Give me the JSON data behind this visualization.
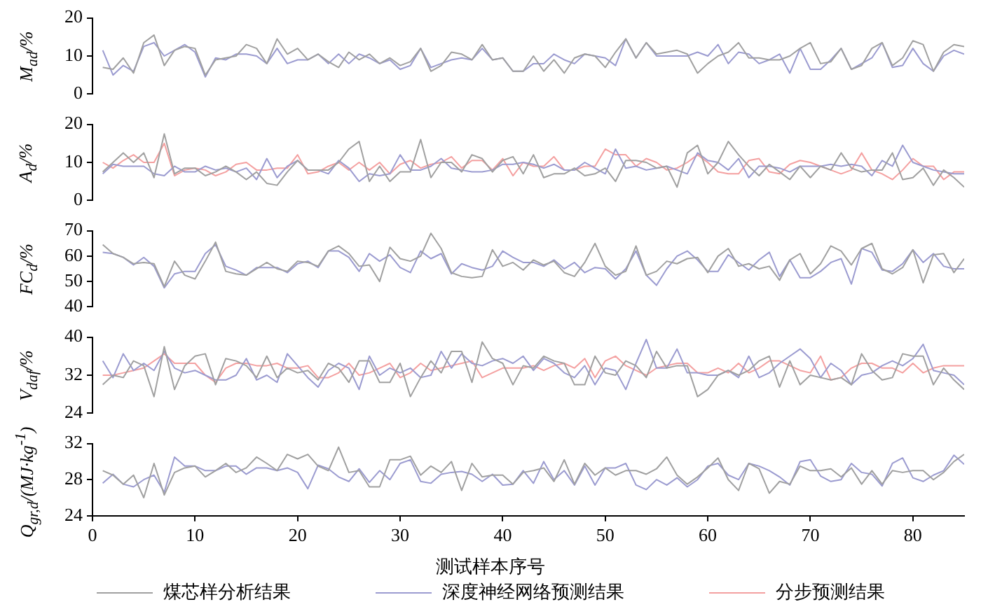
{
  "chart_data": [
    {
      "type": "line",
      "ylabel": "M$_{ad}$/%",
      "ylim": [
        0,
        20
      ],
      "yticks": [
        0,
        10,
        20
      ],
      "tick_labels": "y",
      "grid": false,
      "x": [
        1,
        2,
        3,
        4,
        5,
        6,
        7,
        8,
        9,
        10,
        11,
        12,
        13,
        14,
        15,
        16,
        17,
        18,
        19,
        20,
        21,
        22,
        23,
        24,
        25,
        26,
        27,
        28,
        29,
        30,
        31,
        32,
        33,
        34,
        35,
        36,
        37,
        38,
        39,
        40,
        41,
        42,
        43,
        44,
        45,
        46,
        47,
        48,
        49,
        50,
        51,
        52,
        53,
        54,
        55,
        56,
        57,
        58,
        59,
        60,
        61,
        62,
        63,
        64,
        65,
        66,
        67,
        68,
        69,
        70,
        71,
        72,
        73,
        74,
        75,
        76,
        77,
        78,
        79,
        80,
        81,
        82,
        83,
        84,
        85
      ],
      "series": [
        {
          "color": "#a0a0a0",
          "values": [
            7,
            6.5,
            9.5,
            5.5,
            13.5,
            15.5,
            7.5,
            11.5,
            12.5,
            12,
            5,
            9,
            9.5,
            10,
            13,
            12,
            8,
            14.5,
            10.5,
            12,
            9,
            10.5,
            8.5,
            7,
            11,
            9,
            10.5,
            8,
            9.5,
            7.5,
            8.5,
            12,
            6,
            7.5,
            11,
            10.5,
            9,
            13,
            9,
            9.5,
            6,
            6,
            10,
            6,
            9,
            5.5,
            9.5,
            10.5,
            10,
            7,
            11,
            14.5,
            9.5,
            13.5,
            10.5,
            11,
            11.5,
            10.5,
            5.5,
            8,
            10,
            11,
            13.5,
            9.5,
            9.5,
            9,
            9,
            10,
            12,
            13.5,
            8,
            8.5,
            12,
            6.5,
            7.5,
            12,
            13.5,
            7.5,
            9.5,
            14,
            13,
            6,
            11,
            13,
            12.5
          ]
        },
        {
          "color": "#9b9bd0",
          "values": [
            11.5,
            5,
            7.5,
            6,
            12.5,
            13.5,
            10,
            11.5,
            13,
            11,
            4.5,
            9.5,
            9,
            10.5,
            10.5,
            10,
            8,
            12,
            8,
            9,
            9,
            10.5,
            8,
            10.5,
            8,
            10.5,
            9.5,
            8,
            9,
            6.5,
            7.5,
            12,
            7,
            8,
            9,
            9.5,
            9,
            12,
            9,
            9.5,
            6,
            6,
            8,
            8,
            10.5,
            9,
            8,
            10.5,
            10,
            9.5,
            7.5,
            14.5,
            9.5,
            13.5,
            10,
            10,
            10,
            10,
            11,
            10,
            13,
            8,
            11,
            10.5,
            8,
            9,
            10.5,
            5.5,
            12,
            6.5,
            6.5,
            9,
            12,
            6.5,
            8,
            9.5,
            13.5,
            7,
            7.5,
            12,
            8,
            6,
            10,
            11.5,
            10.5
          ]
        }
      ]
    },
    {
      "type": "line",
      "ylabel": "A$_{d}$/%",
      "ylim": [
        0,
        20
      ],
      "yticks": [
        0,
        10,
        20
      ],
      "tick_labels": "y",
      "grid": false,
      "legend": "bottom",
      "x": [
        1,
        2,
        3,
        4,
        5,
        6,
        7,
        8,
        9,
        10,
        11,
        12,
        13,
        14,
        15,
        16,
        17,
        18,
        19,
        20,
        21,
        22,
        23,
        24,
        25,
        26,
        27,
        28,
        29,
        30,
        31,
        32,
        33,
        34,
        35,
        36,
        37,
        38,
        39,
        40,
        41,
        42,
        43,
        44,
        45,
        46,
        47,
        48,
        49,
        50,
        51,
        52,
        53,
        54,
        55,
        56,
        57,
        58,
        59,
        60,
        61,
        62,
        63,
        64,
        65,
        66,
        67,
        68,
        69,
        70,
        71,
        72,
        73,
        74,
        75,
        76,
        77,
        78,
        79,
        80,
        81,
        82,
        83,
        84,
        85
      ],
      "series": [
        {
          "name": "煤芯样分析结果",
          "color": "#a0a0a0",
          "values": [
            7.5,
            10,
            12.5,
            10,
            12.5,
            6,
            17.5,
            7,
            8.5,
            8.5,
            6.5,
            7.5,
            9,
            7.5,
            5.5,
            7.5,
            4.5,
            4,
            7.5,
            10.5,
            8,
            8,
            8,
            10,
            13.5,
            15.5,
            5,
            9,
            5,
            7.5,
            7.5,
            16,
            6,
            10,
            10,
            7.5,
            12,
            11,
            7.5,
            10.5,
            11.5,
            7,
            12,
            6,
            7,
            7,
            8.5,
            6.5,
            7,
            8.5,
            5,
            10.5,
            10.5,
            10,
            8.5,
            9,
            3.5,
            12.5,
            14.5,
            7,
            10,
            15.5,
            12,
            9,
            6.5,
            9.5,
            7.5,
            5.5,
            9,
            6,
            9,
            8,
            12.5,
            8.5,
            7.5,
            8,
            8,
            12.5,
            5.5,
            6,
            8.5,
            4,
            8,
            6,
            3.5
          ]
        },
        {
          "name": "深度神经网络预测结果",
          "color": "#9b9bd0",
          "values": [
            7,
            9.5,
            9,
            9,
            9,
            7,
            6.5,
            9,
            7.5,
            7.5,
            9,
            8,
            8.5,
            7.5,
            8.5,
            5.5,
            11,
            6,
            9,
            10.5,
            8,
            8,
            7,
            10.5,
            8.5,
            5,
            7,
            6.5,
            7,
            12,
            8,
            8,
            9,
            11,
            8.5,
            8,
            7.5,
            7.5,
            8,
            9.5,
            9.5,
            10,
            9.5,
            8.5,
            9.5,
            8,
            8,
            10,
            8.5,
            7,
            13.5,
            8.5,
            9,
            8,
            8.5,
            9,
            8,
            7,
            12.5,
            10.5,
            10,
            8,
            11,
            6,
            9,
            9,
            8.5,
            7.5,
            9,
            9,
            9,
            9.5,
            9,
            9.5,
            9,
            6.5,
            10.5,
            9,
            14.5,
            10,
            9,
            8,
            7.5,
            7,
            7
          ]
        },
        {
          "name": "分步预测结果",
          "color": "#f4a0a0",
          "values": [
            10,
            8.5,
            10.5,
            12,
            10,
            10,
            15,
            6.5,
            8,
            8.5,
            8,
            6.5,
            7.5,
            9.5,
            10,
            8,
            8,
            8.5,
            8.5,
            12,
            7,
            7.5,
            9,
            10,
            8,
            10,
            8,
            10,
            7,
            9.5,
            10.5,
            8.5,
            9.5,
            10,
            11.5,
            8.5,
            10.5,
            10.5,
            8,
            11,
            6.5,
            10,
            9,
            9,
            11.5,
            8,
            8,
            9,
            9,
            13.5,
            12,
            12,
            9,
            11,
            10,
            8,
            8.5,
            10,
            12,
            10,
            7.5,
            7,
            7,
            10.5,
            11,
            7.5,
            7,
            9.5,
            10.5,
            10,
            9,
            8,
            7,
            8,
            12.5,
            8,
            7,
            5.5,
            8,
            11,
            9,
            9,
            5.5,
            7.5,
            7.5
          ]
        }
      ]
    },
    {
      "type": "line",
      "ylabel": "FC$_{d}$/%",
      "ylim": [
        40,
        70
      ],
      "yticks": [
        40,
        50,
        60,
        70
      ],
      "tick_labels": "y",
      "grid": false,
      "x": [
        1,
        2,
        3,
        4,
        5,
        6,
        7,
        8,
        9,
        10,
        11,
        12,
        13,
        14,
        15,
        16,
        17,
        18,
        19,
        20,
        21,
        22,
        23,
        24,
        25,
        26,
        27,
        28,
        29,
        30,
        31,
        32,
        33,
        34,
        35,
        36,
        37,
        38,
        39,
        40,
        41,
        42,
        43,
        44,
        45,
        46,
        47,
        48,
        49,
        50,
        51,
        52,
        53,
        54,
        55,
        56,
        57,
        58,
        59,
        60,
        61,
        62,
        63,
        64,
        65,
        66,
        67,
        68,
        69,
        70,
        71,
        72,
        73,
        74,
        75,
        76,
        77,
        78,
        79,
        80,
        81,
        82,
        83,
        84,
        85
      ],
      "series": [
        {
          "color": "#a0a0a0",
          "values": [
            64.5,
            61,
            59.5,
            57,
            57.5,
            57,
            48,
            58,
            52.5,
            51,
            58,
            65.5,
            54,
            53,
            52.5,
            55,
            57.5,
            55,
            54,
            58,
            57.5,
            56,
            62,
            64,
            61,
            56,
            56.5,
            50,
            63.5,
            59,
            58,
            60,
            69,
            63,
            53.5,
            52,
            51.5,
            52,
            62.5,
            56,
            57.5,
            54.5,
            58.5,
            56.5,
            58,
            53.5,
            52,
            57.5,
            65,
            56,
            52.5,
            54,
            64,
            52.5,
            54,
            58,
            57,
            59,
            59.5,
            53.5,
            60,
            63,
            56,
            57,
            55,
            56,
            50.5,
            58.5,
            61,
            53,
            57,
            64,
            62,
            56.5,
            63,
            65,
            55,
            53,
            55.5,
            62.5,
            49.5,
            60.5,
            61,
            53.5,
            59
          ]
        },
        {
          "color": "#9b9bd0",
          "values": [
            61.5,
            61,
            59.5,
            56.5,
            59.5,
            56,
            47.5,
            53,
            54,
            54,
            61,
            64.5,
            56,
            54.5,
            52.5,
            55.5,
            55.5,
            55.5,
            53.5,
            57,
            58,
            55.5,
            62,
            62,
            59.5,
            54,
            61,
            58,
            60.5,
            55.5,
            53.5,
            62,
            59,
            61,
            53,
            57,
            55.5,
            54.5,
            56,
            62,
            59.5,
            57.5,
            57.5,
            56,
            58.5,
            55,
            57.5,
            53.5,
            55.5,
            55,
            51,
            55,
            62,
            52.5,
            48.5,
            55,
            60,
            62,
            58.5,
            54,
            54,
            60.5,
            57.5,
            54.5,
            58.5,
            61.5,
            52,
            58.5,
            51.5,
            51.5,
            54,
            57.5,
            59,
            49,
            63,
            61.5,
            54.5,
            54,
            57,
            62.5,
            57.5,
            61,
            56,
            55,
            55
          ]
        }
      ]
    },
    {
      "type": "line",
      "ylabel": "V$_{daf}$/%",
      "ylim": [
        24,
        40
      ],
      "yticks": [
        24,
        32,
        40
      ],
      "tick_labels": "y",
      "grid": false,
      "x": [
        1,
        2,
        3,
        4,
        5,
        6,
        7,
        8,
        9,
        10,
        11,
        12,
        13,
        14,
        15,
        16,
        17,
        18,
        19,
        20,
        21,
        22,
        23,
        24,
        25,
        26,
        27,
        28,
        29,
        30,
        31,
        32,
        33,
        34,
        35,
        36,
        37,
        38,
        39,
        40,
        41,
        42,
        43,
        44,
        45,
        46,
        47,
        48,
        49,
        50,
        51,
        52,
        53,
        54,
        55,
        56,
        57,
        58,
        59,
        60,
        61,
        62,
        63,
        64,
        65,
        66,
        67,
        68,
        69,
        70,
        71,
        72,
        73,
        74,
        75,
        76,
        77,
        78,
        79,
        80,
        81,
        82,
        83,
        84,
        85
      ],
      "series": [
        {
          "color": "#a0a0a0",
          "values": [
            30,
            32,
            31.5,
            35,
            34,
            27.5,
            38,
            29,
            34,
            36,
            36.5,
            30,
            35.5,
            35,
            34,
            31.5,
            36,
            31.5,
            33.5,
            32.5,
            33,
            31,
            34.5,
            33.5,
            30.5,
            35,
            35,
            30.5,
            30.5,
            34.5,
            27.5,
            31.5,
            35,
            32.5,
            37,
            37,
            30.5,
            39,
            35.5,
            34.5,
            30,
            34,
            33.5,
            36,
            35,
            34.5,
            30,
            30,
            36,
            32.5,
            32,
            35,
            34,
            31.5,
            37,
            33.5,
            34,
            34,
            27.5,
            29,
            32,
            33,
            32,
            33,
            35,
            36,
            29.5,
            35,
            30,
            32,
            31.5,
            31,
            31.5,
            30,
            36.5,
            33,
            31,
            31.5,
            36.5,
            36,
            36,
            30,
            33.5,
            31,
            29
          ]
        },
        {
          "color": "#9b9bd0",
          "values": [
            35,
            31.5,
            36.5,
            33,
            34.5,
            33,
            37,
            33.5,
            32.5,
            33,
            32,
            31,
            31,
            32,
            35.5,
            31,
            32,
            30.5,
            36.5,
            34,
            31.5,
            29.5,
            33,
            34.5,
            33.5,
            29,
            36,
            32,
            33.5,
            32.5,
            33.5,
            31.5,
            32,
            37,
            33.5,
            36.5,
            34.5,
            34,
            35,
            35.5,
            34.5,
            36,
            33,
            35.5,
            34.5,
            32.5,
            31.5,
            34,
            30,
            33.5,
            33,
            29,
            34.5,
            39.5,
            33.5,
            33.5,
            37.5,
            32.5,
            32.5,
            32,
            32,
            33,
            31.5,
            36,
            31.5,
            32.5,
            34.5,
            36,
            37.5,
            35.5,
            31.5,
            34.5,
            33,
            30,
            32,
            32.5,
            34,
            35,
            34,
            35.5,
            38.5,
            33,
            32.5,
            32,
            30
          ]
        },
        {
          "color": "#f4a0a0",
          "values": [
            32,
            32,
            32.5,
            33,
            33.5,
            35,
            36.5,
            34.5,
            34.5,
            34.5,
            32,
            30.5,
            33.5,
            34.5,
            34.5,
            34,
            34,
            34.5,
            33.5,
            33.5,
            34,
            31.5,
            31.5,
            32.5,
            34.5,
            32,
            32.5,
            33.5,
            34.5,
            31.5,
            32.5,
            34.5,
            33,
            33.5,
            34,
            34.5,
            35,
            31.5,
            32.5,
            33.5,
            33.5,
            33.5,
            34,
            33,
            34,
            34.5,
            33.5,
            35.5,
            31.5,
            35,
            36,
            34,
            33,
            32,
            33.5,
            34,
            34.5,
            34.5,
            32.5,
            32.5,
            33.5,
            32.5,
            34.5,
            32.5,
            33.5,
            35,
            35,
            34,
            33,
            32.5,
            36,
            31,
            31.5,
            33.5,
            34.5,
            34.5,
            33.5,
            33.5,
            32.5,
            34.5,
            32.5,
            33.5,
            34,
            34,
            34
          ]
        }
      ]
    },
    {
      "type": "line",
      "ylabel": "Q$_{gr,d}$/(MJ·kg$^{-1}$)",
      "xlabel": "测试样本序号",
      "xlim": [
        0,
        85
      ],
      "xticks": [
        0,
        10,
        20,
        30,
        40,
        50,
        60,
        70,
        80
      ],
      "ylim": [
        24,
        32
      ],
      "yticks": [
        24,
        28,
        32
      ],
      "grid": false,
      "x": [
        1,
        2,
        3,
        4,
        5,
        6,
        7,
        8,
        9,
        10,
        11,
        12,
        13,
        14,
        15,
        16,
        17,
        18,
        19,
        20,
        21,
        22,
        23,
        24,
        25,
        26,
        27,
        28,
        29,
        30,
        31,
        32,
        33,
        34,
        35,
        36,
        37,
        38,
        39,
        40,
        41,
        42,
        43,
        44,
        45,
        46,
        47,
        48,
        49,
        50,
        51,
        52,
        53,
        54,
        55,
        56,
        57,
        58,
        59,
        60,
        61,
        62,
        63,
        64,
        65,
        66,
        67,
        68,
        69,
        70,
        71,
        72,
        73,
        74,
        75,
        76,
        77,
        78,
        79,
        80,
        81,
        82,
        83,
        84,
        85
      ],
      "series": [
        {
          "color": "#a0a0a0",
          "values": [
            29,
            28.5,
            27.5,
            28.5,
            26,
            29.8,
            26.3,
            28.8,
            29.3,
            29.5,
            28.3,
            29,
            29.8,
            28.8,
            29.3,
            30.5,
            29.8,
            29,
            30.8,
            30.3,
            30.8,
            29.5,
            29,
            31.6,
            28.8,
            29,
            27.2,
            27.2,
            30.2,
            30.2,
            30.6,
            28.5,
            29.5,
            28.8,
            30,
            26.8,
            29.8,
            28.3,
            28.5,
            28.5,
            27.5,
            28.8,
            29,
            29.3,
            27.8,
            30.2,
            27.5,
            29.8,
            28.5,
            29.3,
            28.5,
            29,
            29,
            28.6,
            29.2,
            30.5,
            28.5,
            27.5,
            28.3,
            29.3,
            30.4,
            28,
            26.8,
            29.8,
            29.2,
            26.5,
            27.8,
            27.5,
            29.5,
            29,
            29,
            29.2,
            28.3,
            29.3,
            27.5,
            29,
            27.5,
            29,
            28.8,
            29,
            29,
            28,
            28.8,
            30,
            30.8
          ]
        },
        {
          "color": "#9b9bd0",
          "values": [
            27.6,
            28.6,
            27.5,
            27.2,
            28,
            28.5,
            26.6,
            30.5,
            29.5,
            29.5,
            29,
            29,
            29.5,
            29.5,
            28.6,
            29.3,
            29.3,
            29,
            29.3,
            28.8,
            27,
            29.6,
            29.2,
            28.3,
            27.8,
            29.2,
            27.7,
            29,
            28,
            29.8,
            30.2,
            27.8,
            27.6,
            28.6,
            28.8,
            28.9,
            28.6,
            27.8,
            28.6,
            27.4,
            27.5,
            29,
            27.6,
            30,
            28,
            29,
            27.4,
            29.5,
            27.4,
            29.3,
            29.3,
            29.8,
            27.4,
            26.9,
            28,
            27.4,
            28.2,
            27.2,
            28,
            29.5,
            29.8,
            28.5,
            28,
            29.8,
            29.5,
            29,
            28.3,
            27.4,
            30,
            30.2,
            28.4,
            27.8,
            28,
            29.8,
            28.8,
            28.6,
            27.3,
            29.8,
            30.4,
            28.2,
            27.8,
            28.5,
            29,
            30.7,
            29.7
          ]
        }
      ]
    }
  ]
}
